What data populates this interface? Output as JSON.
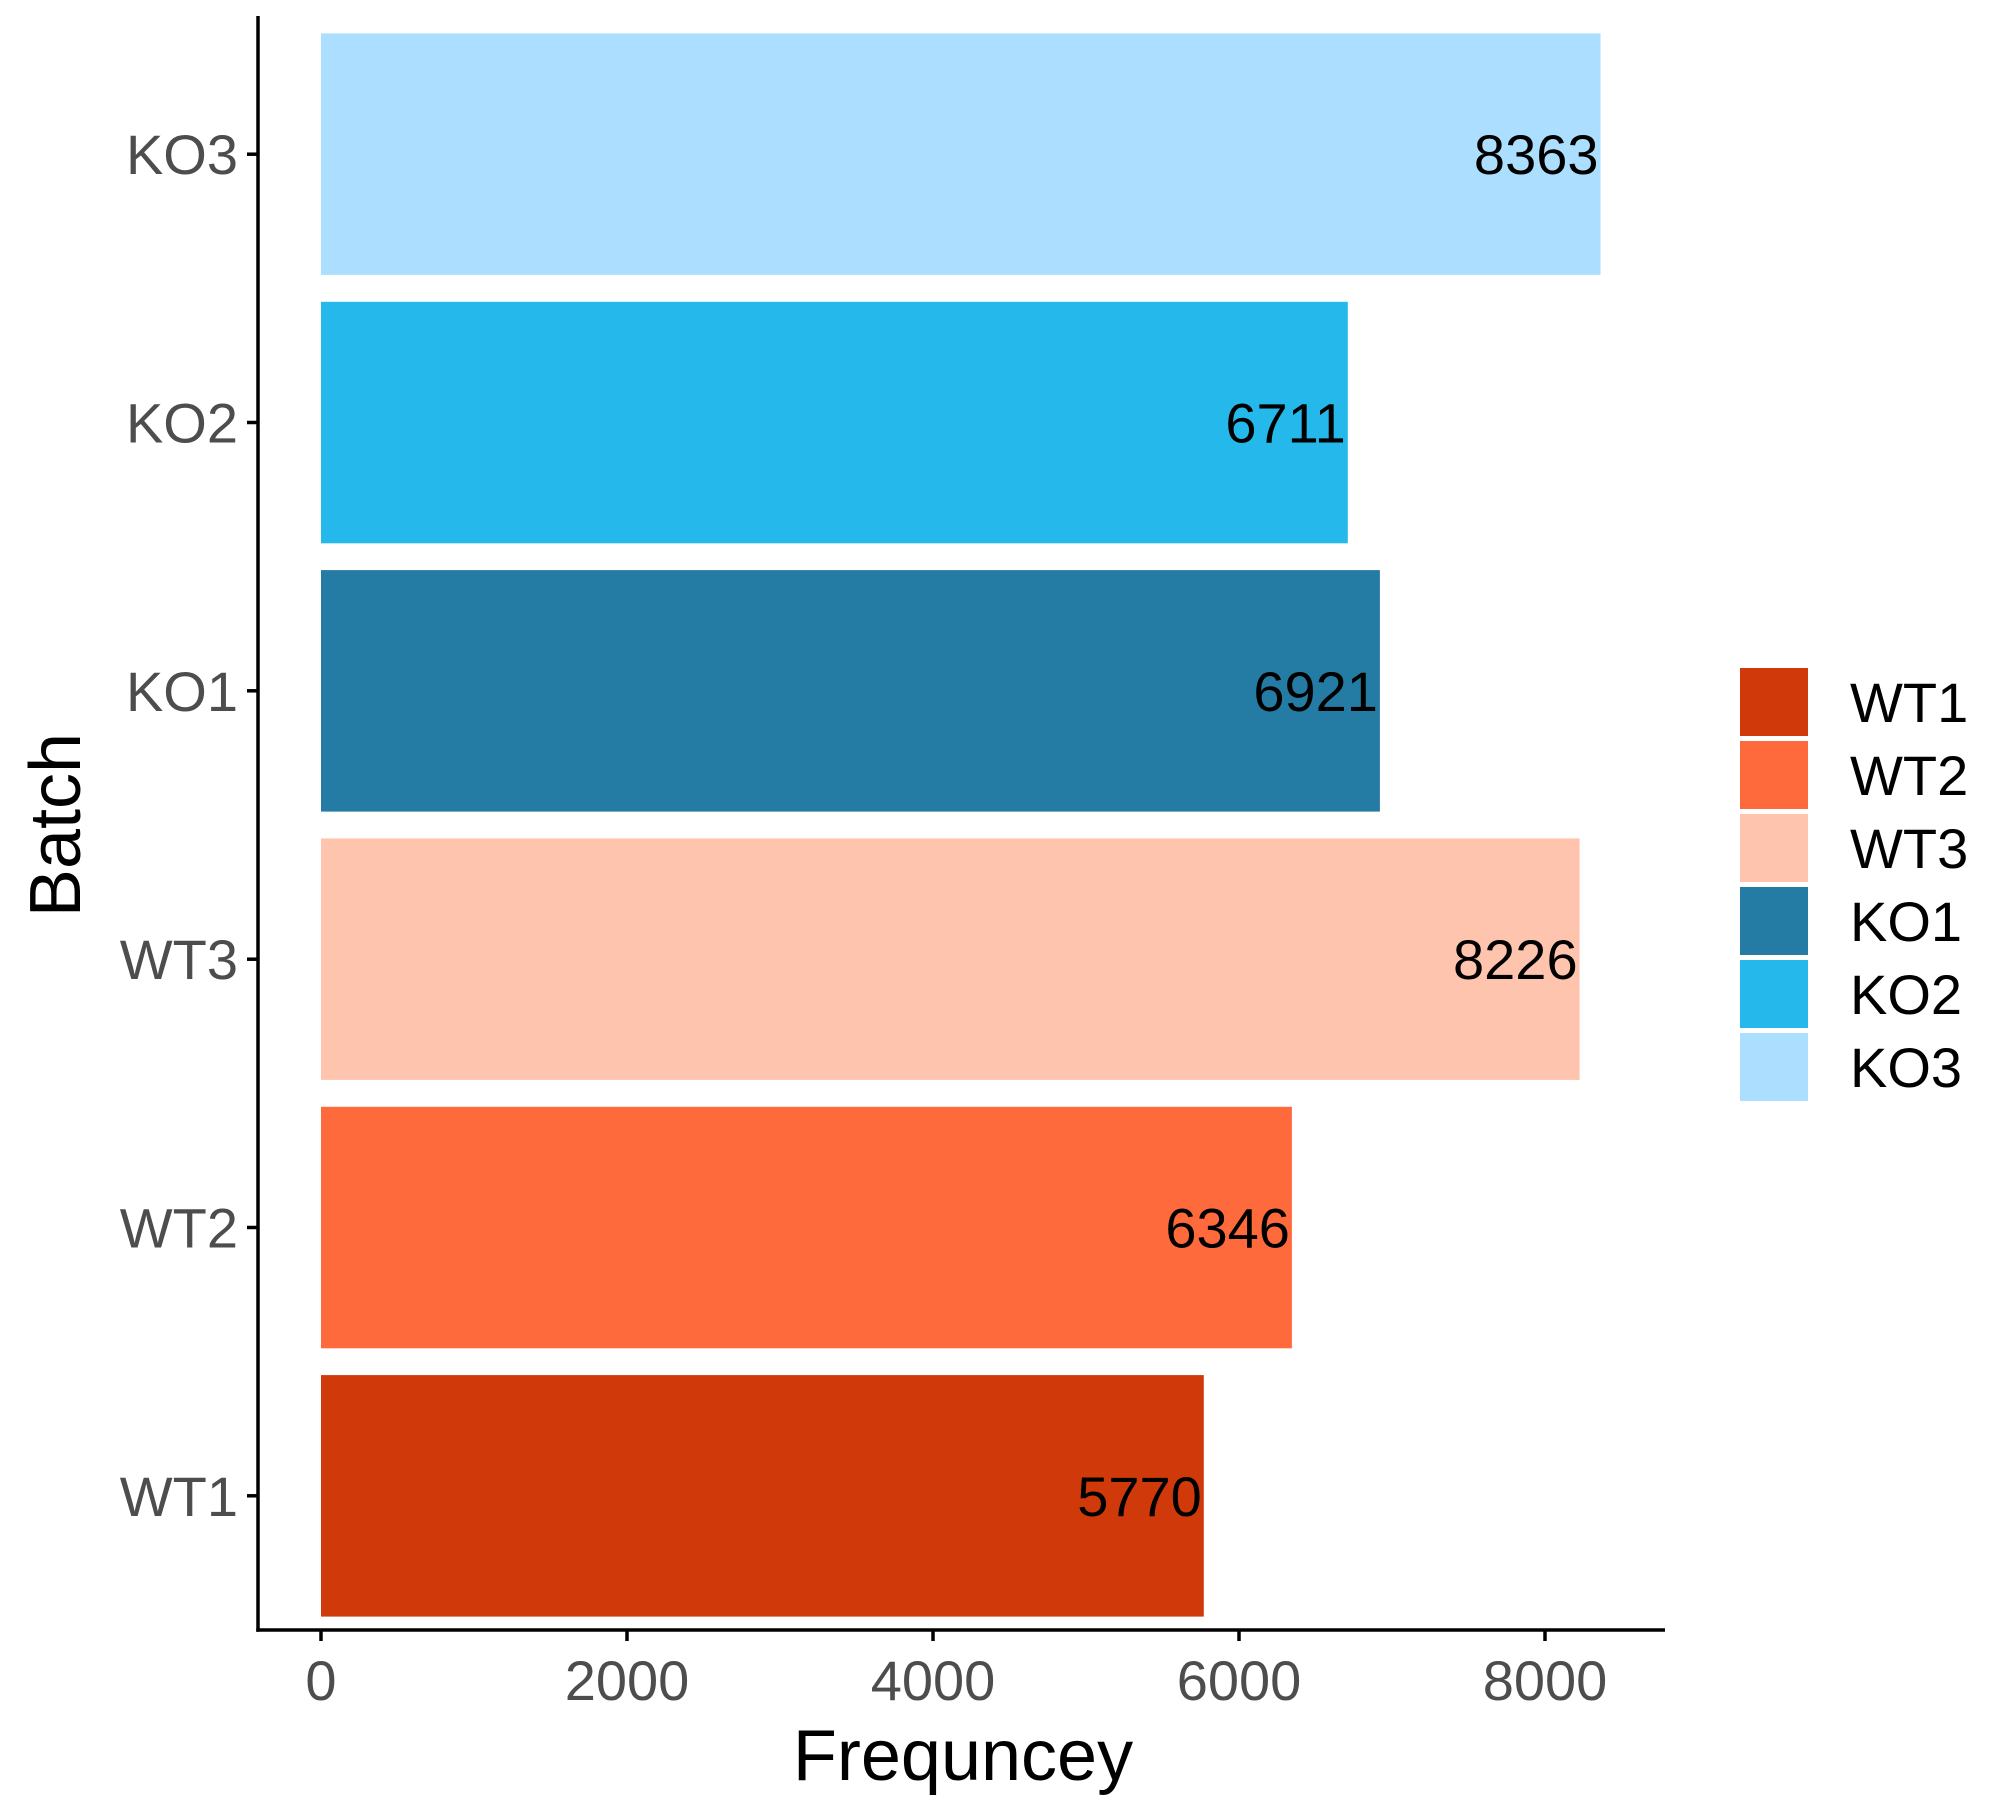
{
  "chart_data": {
    "type": "bar",
    "orientation": "horizontal",
    "categories": [
      "WT1",
      "WT2",
      "WT3",
      "KO1",
      "KO2",
      "KO3"
    ],
    "values": [
      5770,
      6346,
      8226,
      6921,
      6711,
      8363
    ],
    "data_labels": [
      "5770",
      "6346",
      "8226",
      "6921",
      "6711",
      "8363"
    ],
    "colors": [
      "#D03A0A",
      "#FF6A3D",
      "#FFC4AD",
      "#247BA3",
      "#24B9EA",
      "#ACDFFF"
    ],
    "xlabel": "Frequncey",
    "ylabel": "Batch",
    "xlim": [
      -400,
      8800
    ],
    "xticks": [
      0,
      2000,
      4000,
      6000,
      8000
    ],
    "xtick_labels": [
      "0",
      "2000",
      "4000",
      "6000",
      "8000"
    ],
    "grid": false,
    "legend": {
      "position": "right",
      "entries": [
        "WT1",
        "WT2",
        "WT3",
        "KO1",
        "KO2",
        "KO3"
      ]
    }
  }
}
